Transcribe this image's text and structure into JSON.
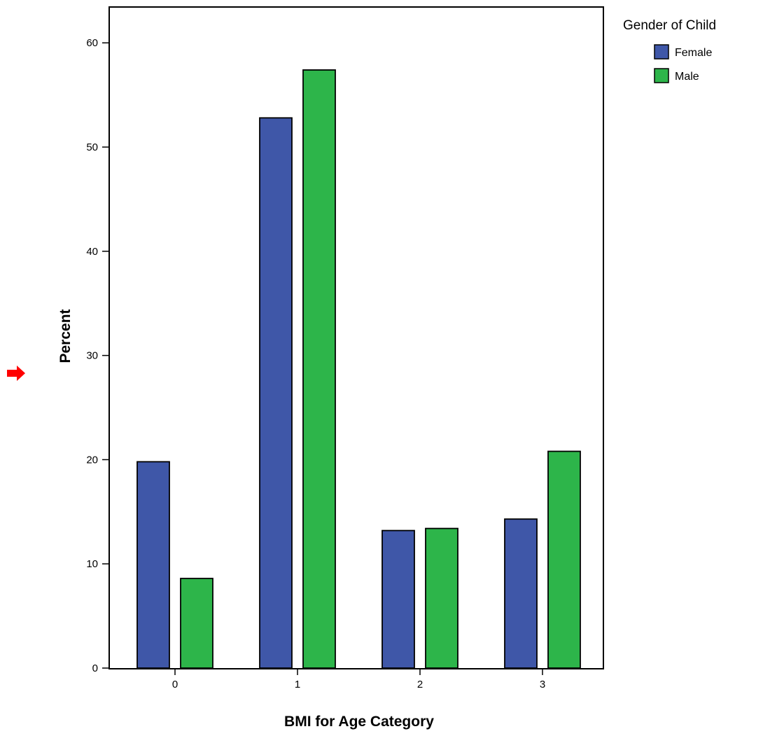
{
  "chart_data": {
    "type": "bar",
    "categories": [
      "0",
      "1",
      "2",
      "3"
    ],
    "series": [
      {
        "name": "Female",
        "values": [
          19.8,
          52.8,
          13.2,
          14.3
        ],
        "color": "#3f57a8"
      },
      {
        "name": "Male",
        "values": [
          8.6,
          57.4,
          13.4,
          20.8
        ],
        "color": "#2db54a"
      }
    ],
    "xlabel": "BMI for Age Category",
    "ylabel": "Percent",
    "ylim": [
      0,
      63
    ],
    "yticks": [
      0,
      10,
      20,
      30,
      40,
      50,
      60
    ],
    "grid": false,
    "legend": {
      "title": "Gender of Child",
      "position": "top-right"
    },
    "marker_color": "#ff0000"
  }
}
